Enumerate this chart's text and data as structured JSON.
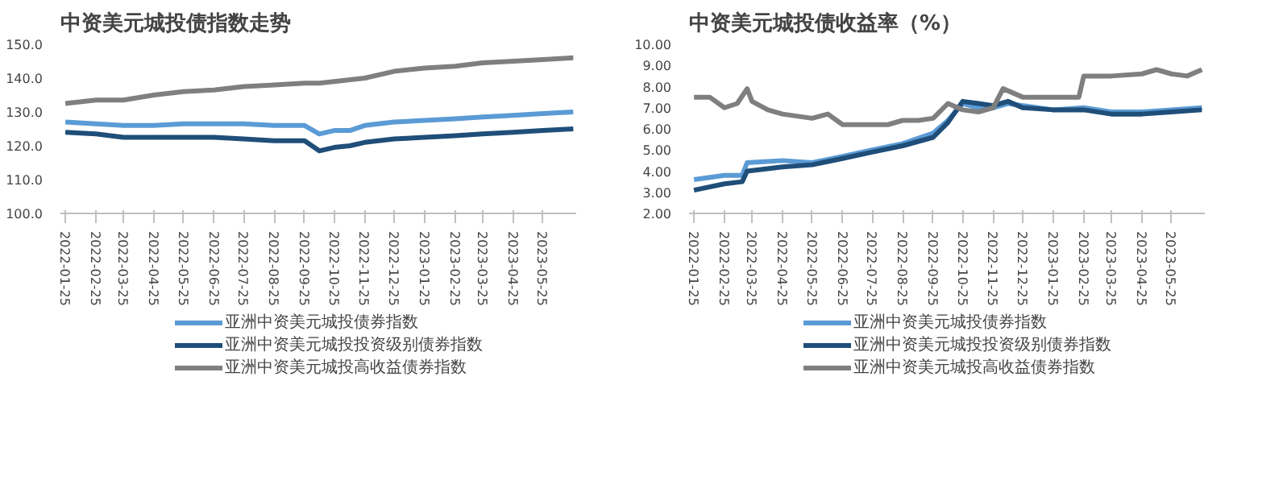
{
  "chart_data": [
    {
      "type": "line",
      "title": "中资美元城投债指数走势",
      "xlim": [
        "2022-01-20",
        "2023-06-28"
      ],
      "ylim": [
        100,
        150
      ],
      "yticks": [
        {
          "value": 100,
          "label": "100.0"
        },
        {
          "value": 110,
          "label": "110.0"
        },
        {
          "value": 120,
          "label": "120.0"
        },
        {
          "value": 130,
          "label": "130.0"
        },
        {
          "value": 140,
          "label": "140.0"
        },
        {
          "value": 150,
          "label": "150.0"
        }
      ],
      "xticks": [
        "2022-01-25",
        "2022-02-25",
        "2022-03-25",
        "2022-04-25",
        "2022-05-25",
        "2022-06-25",
        "2022-07-25",
        "2022-08-25",
        "2022-09-25",
        "2022-10-25",
        "2022-11-25",
        "2022-12-25",
        "2023-01-25",
        "2023-02-25",
        "2023-03-25",
        "2023-04-25",
        "2023-05-25"
      ],
      "grid": false,
      "legend": "bottom",
      "line_style": "solid",
      "marker": "none",
      "series": [
        {
          "name": "亚洲中资美元城投债券指数",
          "color": "#5b9bd5",
          "x": [
            "2022-01-25",
            "2022-02-25",
            "2022-03-25",
            "2022-04-25",
            "2022-05-25",
            "2022-06-25",
            "2022-07-25",
            "2022-08-25",
            "2022-09-25",
            "2022-10-10",
            "2022-10-25",
            "2022-11-10",
            "2022-11-25",
            "2022-12-25",
            "2023-01-25",
            "2023-02-25",
            "2023-03-25",
            "2023-04-25",
            "2023-05-25",
            "2023-06-25"
          ],
          "values": [
            127,
            126.5,
            126,
            126,
            126.5,
            126.5,
            126.5,
            126,
            126,
            123.5,
            124.5,
            124.5,
            126,
            127,
            127.5,
            128,
            128.5,
            129,
            129.5,
            130
          ]
        },
        {
          "name": "亚洲中资美元城投投资级别债券指数",
          "color": "#1f4e79",
          "x": [
            "2022-01-25",
            "2022-02-25",
            "2022-03-25",
            "2022-04-25",
            "2022-05-25",
            "2022-06-25",
            "2022-07-25",
            "2022-08-25",
            "2022-09-25",
            "2022-10-10",
            "2022-10-25",
            "2022-11-10",
            "2022-11-25",
            "2022-12-25",
            "2023-01-25",
            "2023-02-25",
            "2023-03-25",
            "2023-04-25",
            "2023-05-25",
            "2023-06-25"
          ],
          "values": [
            124,
            123.5,
            122.5,
            122.5,
            122.5,
            122.5,
            122,
            121.5,
            121.5,
            118.5,
            119.5,
            120,
            121,
            122,
            122.5,
            123,
            123.5,
            124,
            124.5,
            125
          ]
        },
        {
          "name": "亚洲中资美元城投高收益债券指数",
          "color": "#7f7f7f",
          "x": [
            "2022-01-25",
            "2022-02-25",
            "2022-03-25",
            "2022-04-25",
            "2022-05-25",
            "2022-06-25",
            "2022-07-25",
            "2022-08-25",
            "2022-09-25",
            "2022-10-10",
            "2022-10-25",
            "2022-11-25",
            "2022-12-25",
            "2023-01-25",
            "2023-02-25",
            "2023-03-25",
            "2023-04-25",
            "2023-05-25",
            "2023-06-25"
          ],
          "values": [
            132.5,
            133.5,
            133.5,
            135,
            136,
            136.5,
            137.5,
            138,
            138.5,
            138.5,
            139,
            140,
            142,
            143,
            143.5,
            144.5,
            145,
            145.5,
            146
          ]
        }
      ]
    },
    {
      "type": "line",
      "title": "中资美元城投债收益率（%）",
      "xlim": [
        "2022-01-20",
        "2023-06-28"
      ],
      "ylim": [
        2,
        10
      ],
      "yticks": [
        {
          "value": 2,
          "label": "2.00"
        },
        {
          "value": 3,
          "label": "3.00"
        },
        {
          "value": 4,
          "label": "4.00"
        },
        {
          "value": 5,
          "label": "5.00"
        },
        {
          "value": 6,
          "label": "6.00"
        },
        {
          "value": 7,
          "label": "7.00"
        },
        {
          "value": 8,
          "label": "8.00"
        },
        {
          "value": 9,
          "label": "9.00"
        },
        {
          "value": 10,
          "label": "10.00"
        }
      ],
      "xticks": [
        "2022-01-25",
        "2022-02-25",
        "2022-03-25",
        "2022-04-25",
        "2022-05-25",
        "2022-06-25",
        "2022-07-25",
        "2022-08-25",
        "2022-09-25",
        "2022-10-25",
        "2022-11-25",
        "2022-12-25",
        "2023-01-25",
        "2023-02-25",
        "2023-03-25",
        "2023-04-25",
        "2023-05-25"
      ],
      "grid": false,
      "legend": "bottom",
      "line_style": "solid",
      "marker": "none",
      "series": [
        {
          "name": "亚洲中资美元城投债券指数",
          "color": "#5b9bd5",
          "x": [
            "2022-01-25",
            "2022-02-25",
            "2022-03-15",
            "2022-03-20",
            "2022-04-25",
            "2022-05-25",
            "2022-06-25",
            "2022-07-25",
            "2022-08-25",
            "2022-09-25",
            "2022-10-10",
            "2022-10-25",
            "2022-11-10",
            "2022-11-25",
            "2022-12-10",
            "2022-12-25",
            "2023-01-25",
            "2023-02-25",
            "2023-03-25",
            "2023-04-25",
            "2023-05-25",
            "2023-06-25"
          ],
          "values": [
            3.6,
            3.8,
            3.8,
            4.4,
            4.5,
            4.4,
            4.7,
            5.0,
            5.3,
            5.8,
            6.4,
            7.2,
            7.0,
            7.0,
            7.2,
            7.1,
            6.9,
            7.0,
            6.8,
            6.8,
            6.9,
            7.0
          ]
        },
        {
          "name": "亚洲中资美元城投投资级别债券指数",
          "color": "#1f4e79",
          "x": [
            "2022-01-25",
            "2022-02-25",
            "2022-03-15",
            "2022-03-20",
            "2022-04-25",
            "2022-05-25",
            "2022-06-25",
            "2022-07-25",
            "2022-08-25",
            "2022-09-25",
            "2022-10-10",
            "2022-10-25",
            "2022-11-10",
            "2022-11-25",
            "2022-12-10",
            "2022-12-25",
            "2023-01-25",
            "2023-02-25",
            "2023-03-25",
            "2023-04-25",
            "2023-05-25",
            "2023-06-25"
          ],
          "values": [
            3.1,
            3.4,
            3.5,
            4.0,
            4.2,
            4.3,
            4.6,
            4.9,
            5.2,
            5.6,
            6.3,
            7.3,
            7.2,
            7.1,
            7.3,
            7.0,
            6.9,
            6.9,
            6.7,
            6.7,
            6.8,
            6.9
          ]
        },
        {
          "name": "亚洲中资美元城投高收益债券指数",
          "color": "#7f7f7f",
          "x": [
            "2022-01-25",
            "2022-02-10",
            "2022-02-25",
            "2022-03-10",
            "2022-03-20",
            "2022-03-25",
            "2022-04-10",
            "2022-04-25",
            "2022-05-25",
            "2022-06-10",
            "2022-06-25",
            "2022-07-25",
            "2022-08-10",
            "2022-08-25",
            "2022-09-10",
            "2022-09-25",
            "2022-10-10",
            "2022-10-25",
            "2022-11-10",
            "2022-11-25",
            "2022-12-05",
            "2022-12-25",
            "2023-01-25",
            "2023-02-20",
            "2023-02-25",
            "2023-03-25",
            "2023-04-25",
            "2023-05-10",
            "2023-05-25",
            "2023-06-10",
            "2023-06-25"
          ],
          "values": [
            7.5,
            7.5,
            7.0,
            7.2,
            7.9,
            7.3,
            6.9,
            6.7,
            6.5,
            6.7,
            6.2,
            6.2,
            6.2,
            6.4,
            6.4,
            6.5,
            7.2,
            6.9,
            6.8,
            7.0,
            7.9,
            7.5,
            7.5,
            7.5,
            8.5,
            8.5,
            8.6,
            8.8,
            8.6,
            8.5,
            8.8
          ]
        }
      ]
    }
  ]
}
